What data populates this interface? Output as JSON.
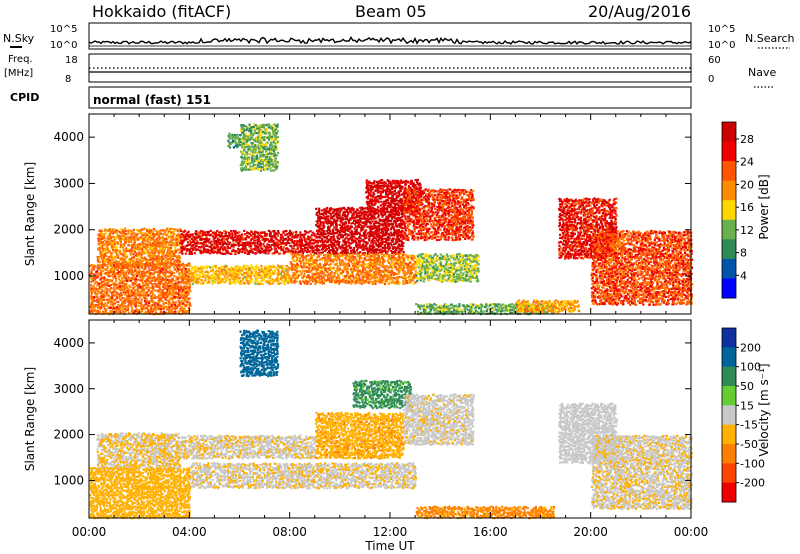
{
  "header": {
    "station": "Hokkaido (fitACF)",
    "beam": "Beam 05",
    "date": "20/Aug/2016",
    "cpid_value": "normal (fast) 151"
  },
  "aux_panels": {
    "nsky_label": "N.Sky",
    "nsearch_label": "N.Search",
    "nsky_ticks": [
      "10^5",
      "10^0"
    ],
    "nsearch_ticks": [
      "10^5",
      "10^0"
    ],
    "freq_label": "Freq.",
    "freq_unit": "[MHz]",
    "freq_ticks": [
      "18",
      "8"
    ],
    "nave_label": "Nave",
    "nave_ticks": [
      "60",
      "0"
    ],
    "cpid_label": "CPID"
  },
  "colors": {
    "power_scale": [
      "#0000ff",
      "#0055aa",
      "#2e8b57",
      "#6ab04c",
      "#ffd700",
      "#ff8c00",
      "#ff5500",
      "#ee0000",
      "#cc0000"
    ],
    "velocity_scale": [
      "#ee0000",
      "#ff4400",
      "#ff8000",
      "#ffb000",
      "#c8c8c8",
      "#66cc33",
      "#2e8b57",
      "#006699",
      "#1030a0"
    ]
  },
  "chart_data": [
    {
      "type": "heatmap",
      "panel": "power",
      "xlabel": "Time UT",
      "ylabel": "Slant Range [km]",
      "x_ticks": [
        "00:00",
        "04:00",
        "08:00",
        "12:00",
        "16:00",
        "20:00",
        "00:00"
      ],
      "x_range_hours": [
        0,
        24
      ],
      "y_ticks": [
        1000,
        2000,
        3000,
        4000
      ],
      "y_range": [
        180,
        4500
      ],
      "colorbar_label": "Power [dB]",
      "colorbar_ticks": [
        4,
        8,
        12,
        16,
        20,
        24,
        28
      ],
      "colorbar_range": [
        0,
        31
      ],
      "regions": [
        {
          "t0": 0.3,
          "t1": 3.6,
          "r0": 1250,
          "r1": 2050,
          "v": 20
        },
        {
          "t0": 3.6,
          "t1": 9.0,
          "r0": 1500,
          "r1": 2000,
          "v": 27
        },
        {
          "t0": 9.0,
          "t1": 12.5,
          "r0": 1500,
          "r1": 2500,
          "v": 29
        },
        {
          "t0": 11.0,
          "t1": 13.2,
          "r0": 2400,
          "r1": 3100,
          "v": 28
        },
        {
          "t0": 12.5,
          "t1": 15.3,
          "r0": 1800,
          "r1": 2900,
          "v": 24
        },
        {
          "t0": 0.0,
          "t1": 4.0,
          "r0": 200,
          "r1": 1300,
          "v": 21
        },
        {
          "t0": 4.0,
          "t1": 8.0,
          "r0": 850,
          "r1": 1250,
          "v": 17
        },
        {
          "t0": 8.0,
          "t1": 13.0,
          "r0": 850,
          "r1": 1500,
          "v": 20
        },
        {
          "t0": 13.0,
          "t1": 15.5,
          "r0": 900,
          "r1": 1500,
          "v": 13
        },
        {
          "t0": 13.0,
          "t1": 18.5,
          "r0": 200,
          "r1": 420,
          "v": 11
        },
        {
          "t0": 17.0,
          "t1": 19.5,
          "r0": 240,
          "r1": 500,
          "v": 18
        },
        {
          "t0": 18.7,
          "t1": 21.0,
          "r0": 1400,
          "r1": 2700,
          "v": 26
        },
        {
          "t0": 20.0,
          "t1": 24.0,
          "r0": 400,
          "r1": 2000,
          "v": 23
        },
        {
          "t0": 6.0,
          "t1": 7.5,
          "r0": 3300,
          "r1": 4300,
          "v": 12
        },
        {
          "t0": 5.5,
          "t1": 6.0,
          "r0": 3800,
          "r1": 4100,
          "v": 10
        }
      ]
    },
    {
      "type": "heatmap",
      "panel": "velocity",
      "xlabel": "Time UT",
      "ylabel": "Slant Range [km]",
      "x_ticks": [
        "00:00",
        "04:00",
        "08:00",
        "12:00",
        "16:00",
        "20:00",
        "00:00"
      ],
      "x_range_hours": [
        0,
        24
      ],
      "y_ticks": [
        1000,
        2000,
        3000,
        4000
      ],
      "y_range": [
        180,
        4500
      ],
      "colorbar_label": "Velocity [m s⁻¹]",
      "colorbar_ticks": [
        200,
        100,
        50,
        15,
        -15,
        -50,
        -100,
        -200
      ],
      "regions": [
        {
          "t0": 0.3,
          "t1": 3.6,
          "r0": 1250,
          "r1": 2050,
          "v": -15
        },
        {
          "t0": 3.6,
          "t1": 9.0,
          "r0": 1500,
          "r1": 2000,
          "v": -10
        },
        {
          "t0": 9.0,
          "t1": 12.5,
          "r0": 1500,
          "r1": 2500,
          "v": -40
        },
        {
          "t0": 10.5,
          "t1": 12.8,
          "r0": 2600,
          "r1": 3200,
          "v": 60
        },
        {
          "t0": 12.5,
          "t1": 15.3,
          "r0": 1800,
          "r1": 2900,
          "v": -5
        },
        {
          "t0": 0.0,
          "t1": 4.0,
          "r0": 200,
          "r1": 1300,
          "v": -30
        },
        {
          "t0": 4.0,
          "t1": 13.0,
          "r0": 850,
          "r1": 1400,
          "v": -10
        },
        {
          "t0": 13.0,
          "t1": 18.5,
          "r0": 200,
          "r1": 450,
          "v": -60
        },
        {
          "t0": 18.7,
          "t1": 21.0,
          "r0": 1400,
          "r1": 2700,
          "v": 0
        },
        {
          "t0": 20.0,
          "t1": 24.0,
          "r0": 400,
          "r1": 2000,
          "v": -10
        },
        {
          "t0": 6.0,
          "t1": 7.5,
          "r0": 3300,
          "r1": 4300,
          "v": 120
        }
      ]
    }
  ]
}
